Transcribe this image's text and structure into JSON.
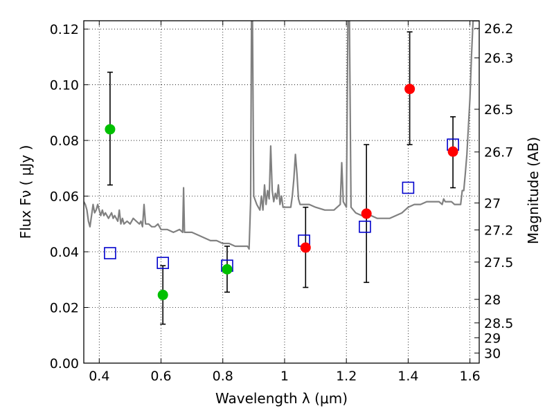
{
  "chart_data": {
    "type": "scatter",
    "xlabel": "Wavelength  λ (μm)",
    "ylabel": "Flux  Fν  ( μJy )",
    "y2label": "Magnitude (AB)",
    "xlim": [
      0.35,
      1.63
    ],
    "ylim": [
      0.0,
      0.123
    ],
    "x_ticks": [
      {
        "v": 0.4,
        "label": "0.4"
      },
      {
        "v": 0.6,
        "label": "0.6"
      },
      {
        "v": 0.8,
        "label": "0.8"
      },
      {
        "v": 1.0,
        "label": "1"
      },
      {
        "v": 1.2,
        "label": "1.2"
      },
      {
        "v": 1.4,
        "label": "1.4"
      },
      {
        "v": 1.6,
        "label": "1.6"
      }
    ],
    "y_ticks": [
      {
        "v": 0.0,
        "label": "0.00"
      },
      {
        "v": 0.02,
        "label": "0.02"
      },
      {
        "v": 0.04,
        "label": "0.04"
      },
      {
        "v": 0.06,
        "label": "0.06"
      },
      {
        "v": 0.08,
        "label": "0.08"
      },
      {
        "v": 0.1,
        "label": "0.10"
      },
      {
        "v": 0.12,
        "label": "0.12"
      }
    ],
    "mag_ticks": [
      {
        "label": "26.2",
        "mag": 26.2
      },
      {
        "label": "26.3",
        "mag": 26.3
      },
      {
        "label": "26.5",
        "mag": 26.5
      },
      {
        "label": "26.7",
        "mag": 26.7
      },
      {
        "label": "27",
        "mag": 27.0
      },
      {
        "label": "27.2",
        "mag": 27.2
      },
      {
        "label": "27.5",
        "mag": 27.5
      },
      {
        "label": "28",
        "mag": 28.0
      },
      {
        "label": "28.5",
        "mag": 28.5
      },
      {
        "label": "29",
        "mag": 29.0
      },
      {
        "label": "30",
        "mag": 30.0
      }
    ],
    "grid": true,
    "model_spectrum": {
      "color": "#808080",
      "points": [
        [
          0.35,
          0.058
        ],
        [
          0.355,
          0.057
        ],
        [
          0.36,
          0.055
        ],
        [
          0.365,
          0.051
        ],
        [
          0.37,
          0.049
        ],
        [
          0.375,
          0.053
        ],
        [
          0.38,
          0.057
        ],
        [
          0.385,
          0.054
        ],
        [
          0.39,
          0.055
        ],
        [
          0.395,
          0.057
        ],
        [
          0.4,
          0.055
        ],
        [
          0.405,
          0.053
        ],
        [
          0.41,
          0.055
        ],
        [
          0.415,
          0.053
        ],
        [
          0.42,
          0.054
        ],
        [
          0.43,
          0.052
        ],
        [
          0.44,
          0.054
        ],
        [
          0.445,
          0.052
        ],
        [
          0.45,
          0.053
        ],
        [
          0.46,
          0.051
        ],
        [
          0.465,
          0.055
        ],
        [
          0.47,
          0.05
        ],
        [
          0.475,
          0.052
        ],
        [
          0.48,
          0.05
        ],
        [
          0.49,
          0.051
        ],
        [
          0.5,
          0.05
        ],
        [
          0.51,
          0.052
        ],
        [
          0.52,
          0.051
        ],
        [
          0.53,
          0.05
        ],
        [
          0.535,
          0.051
        ],
        [
          0.54,
          0.049
        ],
        [
          0.545,
          0.057
        ],
        [
          0.55,
          0.05
        ],
        [
          0.56,
          0.05
        ],
        [
          0.57,
          0.049
        ],
        [
          0.58,
          0.049
        ],
        [
          0.59,
          0.05
        ],
        [
          0.6,
          0.048
        ],
        [
          0.62,
          0.048
        ],
        [
          0.64,
          0.047
        ],
        [
          0.66,
          0.048
        ],
        [
          0.67,
          0.047
        ],
        [
          0.673,
          0.063
        ],
        [
          0.676,
          0.047
        ],
        [
          0.7,
          0.047
        ],
        [
          0.72,
          0.046
        ],
        [
          0.74,
          0.045
        ],
        [
          0.76,
          0.044
        ],
        [
          0.78,
          0.044
        ],
        [
          0.8,
          0.043
        ],
        [
          0.82,
          0.043
        ],
        [
          0.84,
          0.042
        ],
        [
          0.86,
          0.042
        ],
        [
          0.88,
          0.042
        ],
        [
          0.885,
          0.041
        ],
        [
          0.89,
          0.058
        ],
        [
          0.893,
          0.123
        ],
        [
          0.896,
          0.123
        ],
        [
          0.9,
          0.06
        ],
        [
          0.91,
          0.057
        ],
        [
          0.92,
          0.055
        ],
        [
          0.925,
          0.06
        ],
        [
          0.93,
          0.055
        ],
        [
          0.935,
          0.064
        ],
        [
          0.94,
          0.057
        ],
        [
          0.945,
          0.062
        ],
        [
          0.95,
          0.059
        ],
        [
          0.955,
          0.078
        ],
        [
          0.96,
          0.062
        ],
        [
          0.965,
          0.058
        ],
        [
          0.97,
          0.061
        ],
        [
          0.975,
          0.059
        ],
        [
          0.98,
          0.064
        ],
        [
          0.985,
          0.057
        ],
        [
          0.99,
          0.06
        ],
        [
          0.995,
          0.056
        ],
        [
          1.0,
          0.056
        ],
        [
          1.01,
          0.056
        ],
        [
          1.02,
          0.056
        ],
        [
          1.025,
          0.06
        ],
        [
          1.03,
          0.066
        ],
        [
          1.035,
          0.075
        ],
        [
          1.04,
          0.068
        ],
        [
          1.045,
          0.059
        ],
        [
          1.05,
          0.057
        ],
        [
          1.08,
          0.057
        ],
        [
          1.1,
          0.056
        ],
        [
          1.13,
          0.055
        ],
        [
          1.16,
          0.055
        ],
        [
          1.18,
          0.057
        ],
        [
          1.185,
          0.072
        ],
        [
          1.19,
          0.058
        ],
        [
          1.2,
          0.056
        ],
        [
          1.205,
          0.123
        ],
        [
          1.21,
          0.123
        ],
        [
          1.215,
          0.056
        ],
        [
          1.23,
          0.054
        ],
        [
          1.25,
          0.053
        ],
        [
          1.28,
          0.053
        ],
        [
          1.3,
          0.052
        ],
        [
          1.32,
          0.052
        ],
        [
          1.34,
          0.052
        ],
        [
          1.36,
          0.053
        ],
        [
          1.38,
          0.054
        ],
        [
          1.4,
          0.056
        ],
        [
          1.42,
          0.057
        ],
        [
          1.44,
          0.057
        ],
        [
          1.46,
          0.058
        ],
        [
          1.48,
          0.058
        ],
        [
          1.5,
          0.058
        ],
        [
          1.51,
          0.057
        ],
        [
          1.515,
          0.059
        ],
        [
          1.52,
          0.058
        ],
        [
          1.53,
          0.058
        ],
        [
          1.54,
          0.058
        ],
        [
          1.55,
          0.057
        ],
        [
          1.57,
          0.057
        ],
        [
          1.575,
          0.062
        ],
        [
          1.58,
          0.062
        ],
        [
          1.585,
          0.068
        ],
        [
          1.59,
          0.075
        ],
        [
          1.595,
          0.085
        ],
        [
          1.6,
          0.095
        ],
        [
          1.605,
          0.11
        ],
        [
          1.61,
          0.123
        ],
        [
          1.63,
          0.123
        ]
      ]
    },
    "series": [
      {
        "marker": "open-square",
        "color": "#0000cc",
        "points": [
          {
            "x": 0.435,
            "y": 0.0395
          },
          {
            "x": 0.606,
            "y": 0.036
          },
          {
            "x": 0.814,
            "y": 0.035
          },
          {
            "x": 1.063,
            "y": 0.044
          },
          {
            "x": 1.26,
            "y": 0.049
          },
          {
            "x": 1.4,
            "y": 0.063
          },
          {
            "x": 1.545,
            "y": 0.0785
          }
        ]
      },
      {
        "marker": "filled-circle",
        "color": "#00c000",
        "points": [
          {
            "x": 0.435,
            "y": 0.084,
            "err_low": 0.064,
            "err_high": 0.1045
          },
          {
            "x": 0.606,
            "y": 0.0245,
            "err_low": 0.014,
            "err_high": 0.035
          },
          {
            "x": 0.814,
            "y": 0.0337,
            "err_low": 0.0255,
            "err_high": 0.042
          }
        ]
      },
      {
        "marker": "filled-circle",
        "color": "#ff0000",
        "points": [
          {
            "x": 1.068,
            "y": 0.0415,
            "err_low": 0.0272,
            "err_high": 0.056
          },
          {
            "x": 1.265,
            "y": 0.0537,
            "err_low": 0.029,
            "err_high": 0.0785
          },
          {
            "x": 1.405,
            "y": 0.0985,
            "err_low": 0.0785,
            "err_high": 0.119
          },
          {
            "x": 1.545,
            "y": 0.076,
            "err_low": 0.063,
            "err_high": 0.0885
          }
        ]
      }
    ]
  }
}
